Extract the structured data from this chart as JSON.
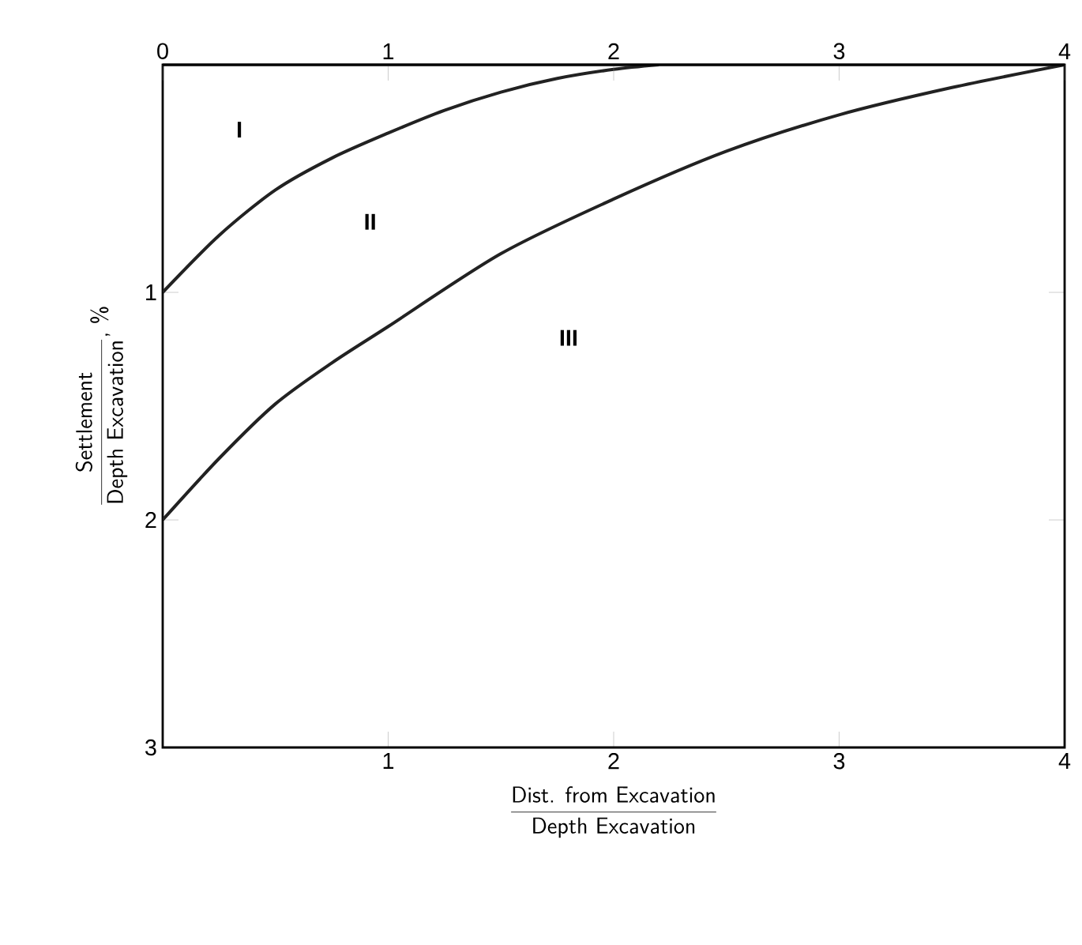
{
  "chart_data": {
    "type": "line",
    "xlabel": "\\frac{\\textsf{Dist. from Excavation}}{\\textsf{Depth Excavation}}",
    "ylabel": "\\frac{\\textsf{Settlement}}{\\textsf{Depth Excavation}}\\textsf{, \\%}",
    "series": [
      {
        "color": "#222222",
        "x": [
          0,
          0.25,
          0.5,
          0.75,
          1,
          1.25,
          1.5,
          1.75,
          2,
          2.2
        ],
        "values": [
          1,
          0.75,
          0.55,
          0.41,
          0.3,
          0.2,
          0.12,
          0.06,
          0.02,
          0
        ]
      },
      {
        "color": "#222222",
        "x": [
          0,
          0.25,
          0.5,
          0.75,
          1,
          1.5,
          2,
          2.5,
          3,
          3.5,
          4
        ],
        "values": [
          2,
          1.73,
          1.49,
          1.31,
          1.15,
          0.83,
          0.59,
          0.38,
          0.22,
          0.1,
          0
        ]
      }
    ],
    "xlim": [
      0,
      4
    ],
    "ylim": [
      3,
      0
    ],
    "xticks": [
      {
        "value": 0,
        "label": null
      },
      1,
      2,
      3,
      4
    ],
    "x2lim": [
      0,
      4
    ],
    "x2ticks": [
      0,
      1,
      2,
      3,
      4
    ],
    "yticks": [
      {
        "value": 0,
        "label": null
      },
      1,
      2,
      3
    ],
    "annotations": [
      "I",
      "II",
      "III"
    ],
    "grid": false,
    "marker": "none",
    "line_style": "solid"
  }
}
